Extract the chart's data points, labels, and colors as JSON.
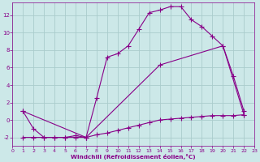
{
  "xlabel": "Windchill (Refroidissement éolien,°C)",
  "bg_color": "#cce8e8",
  "grid_color": "#aacccc",
  "line_color": "#880088",
  "xlim": [
    0,
    23
  ],
  "ylim": [
    -3.0,
    13.5
  ],
  "xticks": [
    0,
    1,
    2,
    3,
    4,
    5,
    6,
    7,
    8,
    9,
    10,
    11,
    12,
    13,
    14,
    15,
    16,
    17,
    18,
    19,
    20,
    21,
    22,
    23
  ],
  "yticks": [
    -2,
    0,
    2,
    4,
    6,
    8,
    10,
    12
  ],
  "curve1_x": [
    1,
    2,
    3,
    4,
    5,
    6,
    7,
    8,
    9,
    10,
    11,
    12,
    13,
    14,
    15,
    16,
    17,
    18,
    19,
    20,
    21,
    22
  ],
  "curve1_y": [
    1.0,
    -1.0,
    -2.0,
    -2.0,
    -2.0,
    -1.8,
    -2.0,
    2.5,
    7.2,
    7.6,
    8.5,
    10.4,
    12.3,
    12.6,
    13.0,
    13.0,
    11.5,
    10.7,
    9.6,
    8.5,
    5.0,
    1.0
  ],
  "curve2_x": [
    1,
    7,
    14,
    20,
    22
  ],
  "curve2_y": [
    1.0,
    -2.0,
    6.3,
    8.5,
    0.6
  ],
  "curve3_x": [
    1,
    2,
    3,
    4,
    5,
    6,
    7,
    8,
    9,
    10,
    11,
    12,
    13,
    14,
    15,
    16,
    17,
    18,
    19,
    20,
    21,
    22
  ],
  "curve3_y": [
    -2.0,
    -2.0,
    -2.0,
    -2.0,
    -2.0,
    -2.0,
    -2.0,
    -1.7,
    -1.5,
    -1.2,
    -0.9,
    -0.6,
    -0.3,
    0.0,
    0.1,
    0.2,
    0.3,
    0.4,
    0.5,
    0.5,
    0.5,
    0.6
  ]
}
